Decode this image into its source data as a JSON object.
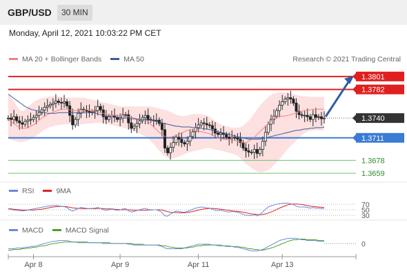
{
  "header": {
    "pair": "GBP/USD",
    "timeframe": "30 MIN"
  },
  "timestamp": "Monday, April 12, 2021 10:03:22 PM CET",
  "credit": "Research © 2021 Trading Central",
  "colors": {
    "ma20": "#f08080",
    "ma50": "#3a5a9a",
    "bb_fill": "#fde0e0",
    "resistance": "#e02020",
    "support": "#3a7bd5",
    "target": "#6fbf6f",
    "current": "#333333",
    "rsi": "#6a8ad6",
    "rsi_ma": "#e02020",
    "macd": "#6a8ad6",
    "macd_signal": "#4aa020",
    "arrow": "#2f5ea0"
  },
  "chart_data": [
    {
      "type": "candlestick",
      "legend": [
        {
          "label": "MA 20 + Bollinger Bands",
          "color": "#f08080"
        },
        {
          "label": "MA 50",
          "color": "#3a5a9a"
        }
      ],
      "ylim": [
        1.3648,
        1.3812
      ],
      "levels": [
        {
          "value": 1.3801,
          "label": "1.3801",
          "kind": "resistance"
        },
        {
          "value": 1.3782,
          "label": "1.3782",
          "kind": "resistance"
        },
        {
          "value": 1.374,
          "label": "1.3740",
          "kind": "current"
        },
        {
          "value": 1.3711,
          "label": "1.3711",
          "kind": "support"
        },
        {
          "value": 1.3678,
          "label": "1.3678",
          "kind": "target"
        },
        {
          "value": 1.3659,
          "label": "1.3659",
          "kind": "target"
        }
      ],
      "close": [
        1.374,
        1.3738,
        1.3742,
        1.3736,
        1.3733,
        1.3731,
        1.3735,
        1.3737,
        1.3738,
        1.3741,
        1.3744,
        1.3748,
        1.3752,
        1.3756,
        1.3758,
        1.376,
        1.3762,
        1.3765,
        1.3763,
        1.3762,
        1.3764,
        1.3758,
        1.3744,
        1.373,
        1.3738,
        1.3747,
        1.3753,
        1.3752,
        1.375,
        1.3748,
        1.3749,
        1.3751,
        1.3757,
        1.3752,
        1.3742,
        1.3738,
        1.3742,
        1.3744,
        1.3741,
        1.3738,
        1.374,
        1.3745,
        1.3745,
        1.3733,
        1.3725,
        1.3728,
        1.3732,
        1.3736,
        1.3741,
        1.3744,
        1.3738,
        1.3737,
        1.3737,
        1.3737,
        1.3732,
        1.3723,
        1.3696,
        1.3689,
        1.3697,
        1.3704,
        1.3712,
        1.3709,
        1.3704,
        1.3702,
        1.3706,
        1.3713,
        1.372,
        1.3726,
        1.373,
        1.3733,
        1.3732,
        1.373,
        1.3729,
        1.3724,
        1.3718,
        1.3716,
        1.3718,
        1.3716,
        1.3712,
        1.371,
        1.3712,
        1.3711,
        1.3709,
        1.3704,
        1.3696,
        1.3692,
        1.369,
        1.369,
        1.3694,
        1.3688,
        1.3694,
        1.3706,
        1.3719,
        1.3731,
        1.3738,
        1.3743,
        1.3751,
        1.3759,
        1.3764,
        1.3768,
        1.377,
        1.3768,
        1.3762,
        1.375,
        1.3745,
        1.3744,
        1.3744,
        1.3742,
        1.3738,
        1.3745,
        1.3741,
        1.3742,
        1.3739,
        1.374
      ],
      "ma20": [
        1.3738,
        1.3735,
        1.3732,
        1.3729,
        1.3726,
        1.3725,
        1.3725,
        1.3726,
        1.3728,
        1.373,
        1.3733,
        1.3737,
        1.374,
        1.3743,
        1.3745,
        1.3747,
        1.3748,
        1.375,
        1.3752,
        1.3753,
        1.3753,
        1.3753,
        1.3752,
        1.3751,
        1.3751,
        1.3751,
        1.3751,
        1.3752,
        1.3752,
        1.3752,
        1.3751,
        1.375,
        1.3749,
        1.3748,
        1.3747,
        1.3745,
        1.3744,
        1.3744,
        1.3744,
        1.3744,
        1.3743,
        1.3743,
        1.3743,
        1.3742,
        1.3741,
        1.374,
        1.3739,
        1.3739,
        1.3738,
        1.3737,
        1.3735,
        1.3731,
        1.3727,
        1.3723,
        1.3719,
        1.3716,
        1.3713,
        1.3712,
        1.3712,
        1.3713,
        1.3714,
        1.3716,
        1.3718,
        1.372,
        1.3722,
        1.3723,
        1.3723,
        1.3722,
        1.3721,
        1.372,
        1.3719,
        1.3718,
        1.3717,
        1.3715,
        1.3713,
        1.3711,
        1.371,
        1.3709,
        1.3709,
        1.3708,
        1.3708,
        1.3707,
        1.3706,
        1.3705,
        1.3704,
        1.3704,
        1.3706,
        1.3709,
        1.3712,
        1.3716,
        1.372,
        1.3724,
        1.3728,
        1.3732,
        1.3736,
        1.3739,
        1.3741,
        1.3742,
        1.3743,
        1.3743,
        1.3744,
        1.3745,
        1.3746,
        1.3748,
        1.3749,
        1.375,
        1.3751,
        1.3752,
        1.3752,
        1.3753,
        1.3753,
        1.3753,
        1.3753,
        1.3753
      ],
      "bb_upper": [
        1.3775,
        1.377,
        1.3765,
        1.3758,
        1.3752,
        1.375,
        1.3752,
        1.3756,
        1.376,
        1.3763,
        1.3766,
        1.3768,
        1.3769,
        1.377,
        1.3771,
        1.3772,
        1.3772,
        1.3772,
        1.3771,
        1.3771,
        1.377,
        1.377,
        1.377,
        1.377,
        1.377,
        1.377,
        1.377,
        1.377,
        1.3769,
        1.3768,
        1.3767,
        1.3766,
        1.3765,
        1.3764,
        1.3763,
        1.3762,
        1.3761,
        1.376,
        1.3759,
        1.3758,
        1.3757,
        1.3757,
        1.3757,
        1.3757,
        1.3757,
        1.3757,
        1.3757,
        1.3757,
        1.3757,
        1.3757,
        1.3757,
        1.3757,
        1.3756,
        1.3755,
        1.3754,
        1.3753,
        1.3752,
        1.3751,
        1.3749,
        1.3747,
        1.3745,
        1.3744,
        1.3743,
        1.3743,
        1.3744,
        1.3745,
        1.3746,
        1.3746,
        1.3746,
        1.3746,
        1.3745,
        1.3744,
        1.3742,
        1.3739,
        1.3736,
        1.3733,
        1.3731,
        1.3729,
        1.3728,
        1.3727,
        1.3726,
        1.3726,
        1.3726,
        1.3727,
        1.3729,
        1.3732,
        1.3736,
        1.3741,
        1.3747,
        1.3753,
        1.3758,
        1.3763,
        1.3767,
        1.3771,
        1.3774,
        1.3776,
        1.3777,
        1.3778,
        1.3778,
        1.3778,
        1.3777,
        1.3776,
        1.3775,
        1.3774,
        1.3773,
        1.3772,
        1.3772,
        1.3772,
        1.3771,
        1.3771,
        1.3771,
        1.3771,
        1.3771,
        1.3771
      ],
      "bb_lower": [
        1.371,
        1.3708,
        1.3707,
        1.3706,
        1.3705,
        1.3705,
        1.3706,
        1.3707,
        1.3709,
        1.3711,
        1.3714,
        1.3717,
        1.372,
        1.3723,
        1.3725,
        1.3727,
        1.3728,
        1.3729,
        1.373,
        1.373,
        1.3731,
        1.3731,
        1.3731,
        1.3731,
        1.3731,
        1.3731,
        1.3731,
        1.3731,
        1.3732,
        1.3732,
        1.3732,
        1.3733,
        1.3733,
        1.3733,
        1.3733,
        1.3732,
        1.3731,
        1.373,
        1.3729,
        1.3728,
        1.3727,
        1.3726,
        1.3725,
        1.3724,
        1.3723,
        1.3721,
        1.3719,
        1.3717,
        1.3715,
        1.3713,
        1.371,
        1.3706,
        1.3702,
        1.3697,
        1.3692,
        1.3688,
        1.3684,
        1.3682,
        1.3681,
        1.3681,
        1.3682,
        1.3683,
        1.3685,
        1.3687,
        1.3689,
        1.369,
        1.3691,
        1.3692,
        1.3693,
        1.3694,
        1.3695,
        1.3696,
        1.3696,
        1.3695,
        1.3694,
        1.3693,
        1.3692,
        1.3691,
        1.369,
        1.3689,
        1.3688,
        1.3687,
        1.3685,
        1.3681,
        1.3677,
        1.3673,
        1.367,
        1.3667,
        1.3664,
        1.3662,
        1.3661,
        1.3661,
        1.3662,
        1.3664,
        1.3667,
        1.3671,
        1.3675,
        1.368,
        1.3685,
        1.369,
        1.3695,
        1.3699,
        1.3703,
        1.3707,
        1.3711,
        1.3715,
        1.3718,
        1.372,
        1.3721,
        1.3722,
        1.3722,
        1.3722,
        1.3722,
        1.3722
      ],
      "ma50": [
        1.3775,
        1.3772,
        1.3769,
        1.3766,
        1.3763,
        1.376,
        1.3757,
        1.3755,
        1.3753,
        1.3752,
        1.3751,
        1.375,
        1.3749,
        1.3748,
        1.3747,
        1.3747,
        1.3747,
        1.3747,
        1.3748,
        1.3748,
        1.3748,
        1.3748,
        1.3748,
        1.3748,
        1.3748,
        1.3748,
        1.3748,
        1.3748,
        1.3748,
        1.3748,
        1.3748,
        1.3747,
        1.3746,
        1.3745,
        1.3744,
        1.3743,
        1.3743,
        1.3742,
        1.3742,
        1.3741,
        1.3741,
        1.374,
        1.374,
        1.374,
        1.3739,
        1.3739,
        1.3738,
        1.3738,
        1.3738,
        1.3738,
        1.3737,
        1.3737,
        1.3736,
        1.3735,
        1.3734,
        1.3733,
        1.3732,
        1.3731,
        1.373,
        1.3729,
        1.3728,
        1.3728,
        1.3727,
        1.3727,
        1.3727,
        1.3727,
        1.3726,
        1.3726,
        1.3725,
        1.3725,
        1.3724,
        1.3724,
        1.3723,
        1.3722,
        1.3721,
        1.372,
        1.3719,
        1.3718,
        1.3717,
        1.3716,
        1.3715,
        1.3714,
        1.3713,
        1.3712,
        1.3711,
        1.371,
        1.3709,
        1.3709,
        1.3709,
        1.3709,
        1.3709,
        1.371,
        1.3711,
        1.3712,
        1.3713,
        1.3714,
        1.3715,
        1.3716,
        1.3717,
        1.3718,
        1.3719,
        1.372,
        1.3721,
        1.3722,
        1.3722,
        1.3723,
        1.3724,
        1.3724,
        1.3725,
        1.3725,
        1.3726,
        1.3726,
        1.3726,
        1.3727
      ],
      "x_labels": [
        {
          "label": "Apr 8",
          "index": 9
        },
        {
          "label": "Apr 9",
          "index": 40
        },
        {
          "label": "Apr 11",
          "index": 68
        },
        {
          "label": "Apr 13",
          "index": 98
        }
      ]
    },
    {
      "type": "line",
      "legend": [
        {
          "label": "RSI",
          "color": "#6a8ad6"
        },
        {
          "label": "9MA",
          "color": "#e02020"
        }
      ],
      "ylim": [
        15,
        85
      ],
      "levels": [
        {
          "value": 70,
          "label": "70"
        },
        {
          "value": 50,
          "label": "50"
        },
        {
          "value": 30,
          "label": "30"
        }
      ],
      "rsi": [
        53,
        51,
        49,
        48,
        47,
        46,
        47,
        49,
        51,
        53,
        55,
        57,
        59,
        61,
        63,
        64,
        65,
        66,
        64,
        62,
        61,
        58,
        50,
        45,
        50,
        55,
        58,
        57,
        55,
        54,
        55,
        56,
        58,
        55,
        50,
        48,
        50,
        52,
        50,
        48,
        49,
        53,
        54,
        46,
        42,
        44,
        47,
        50,
        53,
        55,
        51,
        50,
        50,
        50,
        46,
        40,
        28,
        27,
        35,
        40,
        45,
        44,
        42,
        41,
        44,
        48,
        52,
        56,
        58,
        60,
        59,
        57,
        56,
        52,
        48,
        47,
        48,
        46,
        43,
        42,
        43,
        43,
        41,
        38,
        33,
        30,
        29,
        29,
        32,
        28,
        33,
        42,
        52,
        60,
        64,
        67,
        70,
        72,
        73,
        74,
        74,
        72,
        69,
        63,
        60,
        60,
        60,
        58,
        56,
        58,
        56,
        56,
        54,
        55
      ],
      "ma9": [
        54,
        53,
        52,
        51,
        50,
        49,
        49,
        49,
        49,
        49,
        50,
        51,
        52,
        54,
        56,
        58,
        60,
        61,
        62,
        62,
        62,
        61,
        59,
        57,
        56,
        55,
        55,
        54,
        54,
        54,
        54,
        54,
        55,
        55,
        54,
        53,
        53,
        53,
        52,
        51,
        50,
        50,
        50,
        50,
        49,
        48,
        48,
        48,
        48,
        48,
        49,
        49,
        50,
        50,
        50,
        49,
        46,
        43,
        41,
        40,
        40,
        39,
        39,
        39,
        40,
        42,
        44,
        46,
        49,
        51,
        53,
        54,
        55,
        55,
        54,
        53,
        52,
        51,
        49,
        48,
        46,
        45,
        44,
        43,
        41,
        39,
        37,
        35,
        34,
        33,
        32,
        33,
        35,
        38,
        42,
        46,
        51,
        56,
        60,
        64,
        68,
        70,
        71,
        71,
        70,
        69,
        67,
        65,
        63,
        62,
        61,
        60,
        59,
        58
      ]
    },
    {
      "type": "line",
      "legend": [
        {
          "label": "MACD",
          "color": "#6a8ad6"
        },
        {
          "label": "MACD Signal",
          "color": "#4aa020"
        }
      ],
      "ylim": [
        -0.0014,
        0.0012
      ],
      "levels": [
        {
          "value": 0,
          "label": "0"
        }
      ],
      "macd": [
        -0.0007,
        -0.0007,
        -0.0007,
        -0.0006,
        -0.0006,
        -0.0006,
        -0.0005,
        -0.0005,
        -0.0004,
        -0.0004,
        -0.0003,
        -0.0002,
        -0.0001,
        0.0,
        0.0001,
        0.0002,
        0.0003,
        0.0003,
        0.0004,
        0.0004,
        0.0004,
        0.0004,
        0.0003,
        0.0002,
        0.0002,
        0.0001,
        0.0001,
        0.0001,
        0.0001,
        0.0001,
        0.0001,
        0.0001,
        0.0001,
        0.0001,
        0.0,
        0.0,
        0.0,
        0.0,
        0.0,
        0.0,
        0.0,
        0.0,
        0.0,
        -0.0001,
        -0.0001,
        -0.0002,
        -0.0002,
        -0.0002,
        -0.0002,
        -0.0002,
        -0.0002,
        -0.0002,
        -0.0002,
        -0.0002,
        -0.0003,
        -0.0004,
        -0.0006,
        -0.0007,
        -0.0007,
        -0.0007,
        -0.0007,
        -0.0007,
        -0.0007,
        -0.0006,
        -0.0005,
        -0.0004,
        -0.0003,
        -0.0002,
        -0.0001,
        -0.0001,
        -0.0001,
        -0.0001,
        -0.0001,
        -0.0002,
        -0.0002,
        -0.0003,
        -0.0003,
        -0.0003,
        -0.0004,
        -0.0004,
        -0.0004,
        -0.0005,
        -0.0005,
        -0.0006,
        -0.0007,
        -0.0008,
        -0.0009,
        -0.001,
        -0.001,
        -0.001,
        -0.0009,
        -0.0008,
        -0.0006,
        -0.0004,
        -0.0002,
        0.0,
        0.0002,
        0.0004,
        0.0005,
        0.0006,
        0.0007,
        0.0007,
        0.0007,
        0.0007,
        0.0006,
        0.0005,
        0.0005,
        0.0004,
        0.0004,
        0.0004,
        0.0004,
        0.0003,
        0.0003,
        0.0003
      ],
      "signal": [
        -0.0009,
        -0.0009,
        -0.0008,
        -0.0008,
        -0.0008,
        -0.0007,
        -0.0007,
        -0.0006,
        -0.0006,
        -0.0005,
        -0.0005,
        -0.0004,
        -0.0003,
        -0.0003,
        -0.0002,
        -0.0001,
        0.0,
        0.0,
        0.0001,
        0.0001,
        0.0002,
        0.0002,
        0.0002,
        0.0002,
        0.0002,
        0.0002,
        0.0002,
        0.0002,
        0.0002,
        0.0001,
        0.0001,
        0.0001,
        0.0001,
        0.0001,
        0.0001,
        0.0001,
        0.0001,
        0.0,
        0.0,
        0.0,
        0.0,
        0.0,
        0.0,
        0.0,
        0.0,
        -0.0001,
        -0.0001,
        -0.0001,
        -0.0001,
        -0.0002,
        -0.0002,
        -0.0002,
        -0.0002,
        -0.0002,
        -0.0002,
        -0.0003,
        -0.0003,
        -0.0004,
        -0.0005,
        -0.0005,
        -0.0006,
        -0.0006,
        -0.0006,
        -0.0006,
        -0.0006,
        -0.0005,
        -0.0005,
        -0.0004,
        -0.0003,
        -0.0003,
        -0.0002,
        -0.0002,
        -0.0002,
        -0.0002,
        -0.0002,
        -0.0002,
        -0.0002,
        -0.0003,
        -0.0003,
        -0.0003,
        -0.0004,
        -0.0004,
        -0.0004,
        -0.0005,
        -0.0005,
        -0.0006,
        -0.0007,
        -0.0007,
        -0.0008,
        -0.0008,
        -0.0009,
        -0.0009,
        -0.0008,
        -0.0007,
        -0.0006,
        -0.0005,
        -0.0003,
        -0.0002,
        0.0,
        0.0001,
        0.0003,
        0.0004,
        0.0005,
        0.0005,
        0.0006,
        0.0006,
        0.0006,
        0.0005,
        0.0005,
        0.0005,
        0.0005,
        0.0004,
        0.0004,
        0.0004
      ]
    }
  ]
}
